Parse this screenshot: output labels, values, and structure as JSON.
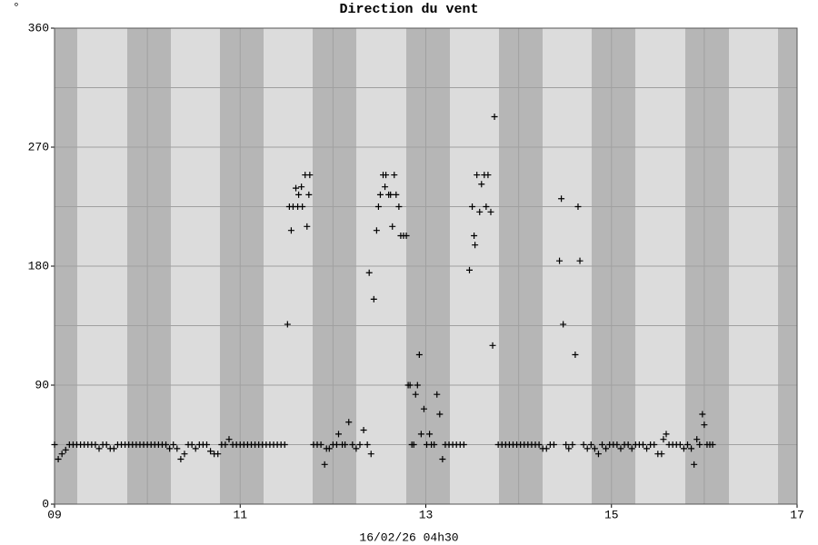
{
  "chart_data": {
    "type": "scatter",
    "title": "Direction du vent",
    "y_unit": "°",
    "x_label": "16/02/26 04h30",
    "color": "#000000",
    "grid": true,
    "xlim": [
      9,
      17
    ],
    "xticks": [
      {
        "value": 9,
        "label": "09"
      },
      11,
      13,
      15,
      17
    ],
    "minor_xticks": [
      10,
      12,
      14,
      16
    ],
    "ylim": [
      0,
      360
    ],
    "yticks": [
      0,
      90,
      180,
      270,
      360
    ],
    "minor_yticks": [
      45,
      135,
      225,
      315
    ],
    "x": [
      9,
      9.04,
      9.08,
      9.12,
      9.16,
      9.2,
      9.24,
      9.28,
      9.32,
      9.36,
      9.4,
      9.44,
      9.48,
      9.52,
      9.56,
      9.6,
      9.64,
      9.68,
      9.72,
      9.76,
      9.8,
      9.84,
      9.88,
      9.92,
      9.96,
      10,
      10.04,
      10.08,
      10.12,
      10.16,
      10.2,
      10.24,
      10.28,
      10.32,
      10.36,
      10.4,
      10.44,
      10.48,
      10.52,
      10.56,
      10.6,
      10.64,
      10.68,
      10.72,
      10.76,
      10.8,
      10.84,
      10.88,
      10.92,
      10.96,
      11,
      11.04,
      11.08,
      11.12,
      11.16,
      11.2,
      11.24,
      11.28,
      11.32,
      11.36,
      11.4,
      11.44,
      11.48,
      11.51,
      11.53,
      11.55,
      11.57,
      11.6,
      11.62,
      11.63,
      11.66,
      11.67,
      11.7,
      11.72,
      11.74,
      11.75,
      11.79,
      11.83,
      11.87,
      11.91,
      11.93,
      11.96,
      12,
      12.04,
      12.06,
      12.1,
      12.13,
      12.17,
      12.21,
      12.25,
      12.29,
      12.33,
      12.37,
      12.39,
      12.41,
      12.44,
      12.47,
      12.49,
      12.51,
      12.54,
      12.56,
      12.57,
      12.6,
      12.62,
      12.64,
      12.66,
      12.68,
      12.71,
      12.73,
      12.76,
      12.79,
      12.81,
      12.83,
      12.85,
      12.87,
      12.89,
      12.91,
      12.93,
      12.95,
      12.98,
      13.01,
      13.04,
      13.06,
      13.09,
      13.12,
      13.15,
      13.18,
      13.21,
      13.25,
      13.29,
      13.33,
      13.37,
      13.41,
      13.47,
      13.5,
      13.52,
      13.53,
      13.55,
      13.58,
      13.6,
      13.63,
      13.65,
      13.67,
      13.7,
      13.72,
      13.74,
      13.78,
      13.82,
      13.86,
      13.9,
      13.94,
      13.98,
      14.02,
      14.06,
      14.1,
      14.14,
      14.18,
      14.22,
      14.26,
      14.3,
      14.34,
      14.38,
      14.44,
      14.46,
      14.48,
      14.51,
      14.54,
      14.58,
      14.61,
      14.64,
      14.66,
      14.7,
      14.74,
      14.78,
      14.82,
      14.86,
      14.9,
      14.94,
      14.98,
      15.02,
      15.06,
      15.1,
      15.14,
      15.18,
      15.22,
      15.26,
      15.3,
      15.34,
      15.38,
      15.42,
      15.46,
      15.5,
      15.54,
      15.56,
      15.59,
      15.62,
      15.66,
      15.7,
      15.74,
      15.78,
      15.82,
      15.86,
      15.89,
      15.92,
      15.95,
      15.98,
      16,
      16.03,
      16.06,
      16.09
    ],
    "values": [
      45,
      34,
      38,
      41,
      45,
      45,
      45,
      45,
      45,
      45,
      45,
      45,
      42,
      45,
      45,
      42,
      42,
      45,
      45,
      45,
      45,
      45,
      45,
      45,
      45,
      45,
      45,
      45,
      45,
      45,
      45,
      42,
      45,
      42,
      34,
      38,
      45,
      45,
      42,
      45,
      45,
      45,
      40,
      38,
      38,
      45,
      45,
      49,
      45,
      45,
      45,
      45,
      45,
      45,
      45,
      45,
      45,
      45,
      45,
      45,
      45,
      45,
      45,
      136,
      225,
      207,
      225,
      239,
      225,
      234,
      240,
      225,
      249,
      210,
      234,
      249,
      45,
      45,
      45,
      30,
      42,
      42,
      45,
      45,
      53,
      45,
      45,
      62,
      45,
      42,
      45,
      56,
      45,
      175,
      38,
      155,
      207,
      225,
      234,
      249,
      240,
      249,
      234,
      234,
      210,
      249,
      234,
      225,
      203,
      203,
      203,
      90,
      90,
      45,
      45,
      83,
      90,
      113,
      53,
      72,
      45,
      53,
      45,
      45,
      83,
      68,
      34,
      45,
      45,
      45,
      45,
      45,
      45,
      177,
      225,
      203,
      196,
      249,
      221,
      242,
      249,
      225,
      249,
      221,
      120,
      293,
      45,
      45,
      45,
      45,
      45,
      45,
      45,
      45,
      45,
      45,
      45,
      45,
      42,
      42,
      45,
      45,
      184,
      231,
      136,
      45,
      42,
      45,
      113,
      225,
      184,
      45,
      42,
      45,
      42,
      38,
      45,
      42,
      45,
      45,
      45,
      42,
      45,
      45,
      42,
      45,
      45,
      45,
      42,
      45,
      45,
      38,
      38,
      49,
      53,
      45,
      45,
      45,
      45,
      42,
      45,
      42,
      30,
      49,
      45,
      68,
      60,
      45,
      45,
      45
    ]
  }
}
